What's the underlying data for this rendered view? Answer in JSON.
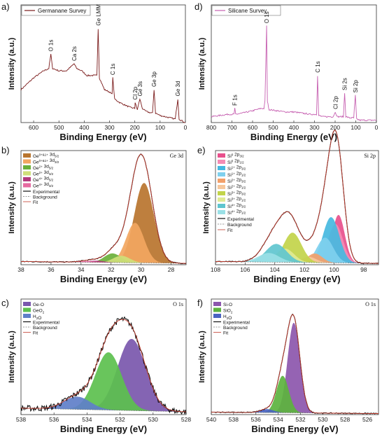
{
  "chart_data": [
    {
      "panel": "a)",
      "type": "line",
      "legend": [
        "Germanane Survey"
      ],
      "xlabel": "Binding Energy (eV)",
      "ylabel": "Intensity (a.u.)",
      "xlim": [
        650,
        0
      ],
      "xticks": [
        600,
        500,
        400,
        300,
        200,
        100,
        0
      ],
      "colors": {
        "line": "#7a1a1a"
      },
      "peaks": [
        {
          "label": "O 1s",
          "x": 532,
          "y": 0.58
        },
        {
          "label": "Ca 2s",
          "x": 440,
          "y": 0.5
        },
        {
          "label": "Ge LMM",
          "x": 345,
          "y": 0.8
        },
        {
          "label": "C 1s",
          "x": 287,
          "y": 0.38
        },
        {
          "label": "Ge 3s",
          "x": 180,
          "y": 0.2
        },
        {
          "label": "Cl 2p",
          "x": 199,
          "y": 0.17
        },
        {
          "label": "Ge 3p",
          "x": 124,
          "y": 0.28
        },
        {
          "label": "Ge 3d",
          "x": 30,
          "y": 0.2
        }
      ],
      "series": [
        {
          "x": [
            650,
            600,
            560,
            540,
            532,
            525,
            500,
            470,
            450,
            440,
            430,
            410,
            400,
            390,
            370,
            350,
            345,
            340,
            320,
            300,
            290,
            287,
            280,
            260,
            240,
            220,
            200,
            199,
            190,
            180,
            170,
            160,
            150,
            130,
            124,
            118,
            100,
            80,
            60,
            40,
            30,
            25,
            10,
            0
          ],
          "y": [
            0.28,
            0.38,
            0.44,
            0.46,
            0.58,
            0.46,
            0.44,
            0.44,
            0.48,
            0.5,
            0.46,
            0.44,
            0.42,
            0.4,
            0.4,
            0.4,
            0.8,
            0.38,
            0.28,
            0.26,
            0.24,
            0.38,
            0.2,
            0.17,
            0.15,
            0.13,
            0.12,
            0.17,
            0.11,
            0.2,
            0.12,
            0.1,
            0.09,
            0.08,
            0.28,
            0.08,
            0.06,
            0.05,
            0.04,
            0.03,
            0.2,
            0.03,
            0.01,
            0.0
          ]
        }
      ]
    },
    {
      "panel": "d)",
      "type": "line",
      "legend": [
        "Silicane Survey"
      ],
      "xlabel": "Binding Energy (eV)",
      "ylabel": "Intensity (a.u.)",
      "xlim": [
        800,
        0
      ],
      "xticks": [
        800,
        700,
        600,
        500,
        400,
        300,
        200,
        100,
        0
      ],
      "colors": {
        "line": "#c65fb0"
      },
      "peaks": [
        {
          "label": "F 1s",
          "x": 686,
          "y": 0.12
        },
        {
          "label": "O 1s",
          "x": 532,
          "y": 0.82
        },
        {
          "label": "C 1s",
          "x": 285,
          "y": 0.4
        },
        {
          "label": "Cl 2p",
          "x": 199,
          "y": 0.09
        },
        {
          "label": "Si 2s",
          "x": 154,
          "y": 0.25
        },
        {
          "label": "Si 2p",
          "x": 102,
          "y": 0.23
        }
      ],
      "series": [
        {
          "x": [
            800,
            760,
            720,
            690,
            686,
            682,
            650,
            600,
            560,
            545,
            540,
            532,
            528,
            520,
            480,
            440,
            400,
            360,
            320,
            290,
            285,
            280,
            260,
            230,
            210,
            199,
            190,
            170,
            160,
            154,
            148,
            130,
            110,
            102,
            96,
            80,
            40,
            0
          ],
          "y": [
            0.05,
            0.06,
            0.07,
            0.07,
            0.12,
            0.07,
            0.08,
            0.1,
            0.12,
            0.12,
            0.18,
            0.82,
            0.18,
            0.11,
            0.1,
            0.09,
            0.09,
            0.08,
            0.07,
            0.07,
            0.4,
            0.06,
            0.05,
            0.05,
            0.05,
            0.09,
            0.05,
            0.05,
            0.05,
            0.25,
            0.05,
            0.04,
            0.04,
            0.23,
            0.03,
            0.02,
            0.02,
            0.02
          ]
        }
      ]
    },
    {
      "panel": "b)",
      "type": "area",
      "title": "Ge 3d",
      "xlabel": "Binding Energy (eV)",
      "ylabel": "Intensity (a.u.)",
      "xlim": [
        38,
        27
      ],
      "xticks": [
        38,
        36,
        34,
        32,
        30,
        28
      ],
      "legend_html": [
        [
          "Ge",
          "0+&1+",
          " 3d",
          "5/2"
        ],
        [
          "Ge",
          "0+&1+",
          " 3d",
          "3/2"
        ],
        [
          "Ge",
          "2+",
          " 3d",
          "5/2"
        ],
        [
          "Ge",
          "2+",
          " 3d",
          "3/2"
        ],
        [
          "Ge",
          "4+",
          " 3d",
          "5/2"
        ],
        [
          "Ge",
          "4+",
          " 3d",
          "3/2"
        ]
      ],
      "legend_lines": [
        "Experimental",
        "Background",
        "Fit"
      ],
      "series": [
        {
          "center": 29.8,
          "height": 0.7,
          "width": 0.65,
          "color": "#b8742e"
        },
        {
          "center": 30.4,
          "height": 0.35,
          "width": 0.6,
          "color": "#f2a660"
        },
        {
          "center": 31.9,
          "height": 0.08,
          "width": 0.55,
          "color": "#6ab03a"
        },
        {
          "center": 31.3,
          "height": 0.06,
          "width": 0.55,
          "color": "#cfe07a"
        },
        {
          "center": 33.0,
          "height": 0.015,
          "width": 0.55,
          "color": "#b23a7d"
        },
        {
          "center": 33.6,
          "height": 0.01,
          "width": 0.55,
          "color": "#e66aa0"
        }
      ],
      "background": 0.02,
      "colors": {
        "experimental": "#111111",
        "background": "#777777",
        "fit": "#c0392b"
      }
    },
    {
      "panel": "e)",
      "type": "area",
      "title": "Si 2p",
      "xlabel": "Binding Energy (eV)",
      "ylabel": "Intensity (a.u.)",
      "xlim": [
        108,
        97
      ],
      "xticks": [
        108,
        106,
        104,
        102,
        100,
        98
      ],
      "legend_html": [
        [
          "Si",
          "0",
          " 2p",
          "3/2"
        ],
        [
          "Si",
          "0",
          " 2p",
          "1/2"
        ],
        [
          "Si",
          "1+",
          " 2p",
          "3/2"
        ],
        [
          "Si",
          "1+",
          " 2p",
          "1/2"
        ],
        [
          "Si",
          "2+",
          " 2p",
          "3/2"
        ],
        [
          "Si",
          "2+",
          " 2p",
          "1/2"
        ],
        [
          "Si",
          "3+",
          " 2p",
          "3/2"
        ],
        [
          "Si",
          "3+",
          " 2p",
          "1/2"
        ],
        [
          "Si",
          "4+",
          " 2p",
          "3/2"
        ],
        [
          "Si",
          "4+",
          " 2p",
          "1/2"
        ]
      ],
      "legend_lines": [
        "Experimental",
        "Background",
        "Fit"
      ],
      "series": [
        {
          "center": 99.7,
          "height": 0.42,
          "width": 0.42,
          "color": "#e8508c"
        },
        {
          "center": 99.9,
          "height": 0.34,
          "width": 0.5,
          "color": "#f48cb4"
        },
        {
          "center": 100.2,
          "height": 0.4,
          "width": 0.55,
          "color": "#45b8e0"
        },
        {
          "center": 100.6,
          "height": 0.22,
          "width": 0.55,
          "color": "#7fd0ee"
        },
        {
          "center": 101.3,
          "height": 0.08,
          "width": 0.5,
          "color": "#f2a06a"
        },
        {
          "center": 101.7,
          "height": 0.05,
          "width": 0.5,
          "color": "#f6c79c"
        },
        {
          "center": 102.8,
          "height": 0.26,
          "width": 0.6,
          "color": "#c2d44a"
        },
        {
          "center": 103.3,
          "height": 0.12,
          "width": 0.6,
          "color": "#e0ea94"
        },
        {
          "center": 103.9,
          "height": 0.16,
          "width": 0.7,
          "color": "#5fc5cf"
        },
        {
          "center": 104.4,
          "height": 0.08,
          "width": 0.7,
          "color": "#9ae0e6"
        }
      ],
      "background": 0.02,
      "colors": {
        "experimental": "#111111",
        "background": "#777777",
        "fit": "#c0392b"
      }
    },
    {
      "panel": "c)",
      "type": "area",
      "title": "O 1s",
      "xlabel": "Binding Energy (eV)",
      "ylabel": "Intensity (a.u.)",
      "xlim": [
        538,
        528
      ],
      "xticks": [
        538,
        536,
        534,
        532,
        530,
        528
      ],
      "legend_html": [
        [
          "Ge-O"
        ],
        [
          "GeO",
          "",
          "",
          "2"
        ],
        [
          "H",
          "",
          "",
          "2"
        ]
      ],
      "legend_suffix": [
        "",
        "",
        "O"
      ],
      "legend_lines": [
        "Experimental",
        "Background",
        "Fit"
      ],
      "series": [
        {
          "center": 531.3,
          "height": 0.62,
          "width": 0.85,
          "color": "#7a57ad"
        },
        {
          "center": 532.7,
          "height": 0.5,
          "width": 0.8,
          "color": "#5cc04e"
        },
        {
          "center": 534.6,
          "height": 0.11,
          "width": 0.8,
          "color": "#5f7fc9"
        }
      ],
      "background": 0.04,
      "colors": {
        "experimental": "#111111",
        "background": "#777777",
        "fit": "#c0392b"
      }
    },
    {
      "panel": "f)",
      "type": "area",
      "title": "O 1s",
      "xlabel": "Binding Energy (eV)",
      "ylabel": "Intensity (a.u.)",
      "xlim": [
        540,
        525
      ],
      "xticks": [
        540,
        538,
        536,
        534,
        532,
        530,
        528,
        526
      ],
      "legend_html": [
        [
          "Si-O"
        ],
        [
          "SiO",
          "",
          "",
          "2"
        ],
        [
          "H",
          "",
          "",
          "2"
        ]
      ],
      "legend_suffix": [
        "",
        "",
        "O"
      ],
      "legend_lines": [
        "Experimental",
        "Background",
        "Fit"
      ],
      "series": [
        {
          "center": 532.6,
          "height": 0.78,
          "width": 0.55,
          "color": "#8c56ad"
        },
        {
          "center": 533.6,
          "height": 0.32,
          "width": 0.55,
          "color": "#5cb33e"
        },
        {
          "center": 535.0,
          "height": 0.03,
          "width": 0.6,
          "color": "#4a63c2"
        }
      ],
      "background": 0.015,
      "colors": {
        "experimental": "#111111",
        "background": "#777777",
        "fit": "#c0392b"
      }
    }
  ]
}
